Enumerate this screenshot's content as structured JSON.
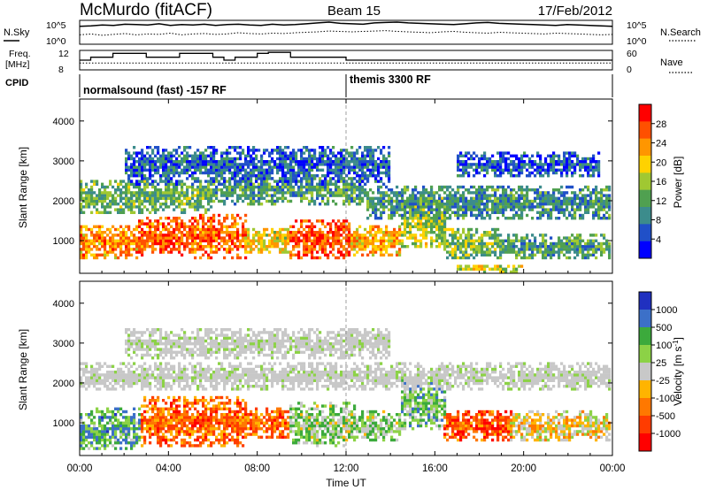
{
  "header": {
    "station": "McMurdo (fitACF)",
    "beam": "Beam 15",
    "date": "17/Feb/2012"
  },
  "top_panels": {
    "nsky_label": "N.Sky",
    "nsearch_label": "N.Search",
    "nsky_ticks": [
      "10^5",
      "10^0"
    ],
    "nsearch_ticks": [
      "10^5",
      "10^0"
    ],
    "freq_label": "Freq.",
    "freq_unit": "[MHz]",
    "freq_ticks": [
      "12",
      "8"
    ],
    "nave_label": "Nave",
    "nave_ticks": [
      "60",
      "0"
    ],
    "cpid_label": "CPID",
    "cpid_segments": [
      {
        "label": "normalsound (fast) -157 RF",
        "start_hour": 0
      },
      {
        "label": "themis 3300 RF",
        "start_hour": 12
      }
    ],
    "nsky_series": [
      4.0,
      4.1,
      4.3,
      4.2,
      4.5,
      4.4,
      4.3,
      4.6,
      4.2,
      4.4,
      4.3,
      4.5,
      4.2,
      4.4,
      4.5,
      4.3,
      4.2,
      4.5,
      4.3,
      4.4,
      4.6,
      4.8,
      5.0,
      4.7,
      4.6,
      4.5,
      4.8,
      4.9,
      5.0,
      4.8,
      4.7,
      4.6,
      4.5,
      4.4,
      4.6,
      4.8,
      4.9,
      4.7,
      4.6,
      4.5,
      4.4,
      4.3,
      4.2,
      4.4,
      4.3,
      4.2,
      4.1,
      4.0
    ],
    "nsearch_series": [
      2.0,
      2.2,
      1.9,
      2.1,
      2.3,
      2.0,
      2.2,
      2.1,
      2.4,
      2.0,
      2.2,
      2.3,
      2.1,
      2.2,
      2.5,
      2.3,
      2.2,
      2.4,
      2.3,
      2.5,
      2.6,
      2.7,
      2.9,
      2.8,
      2.7,
      2.8,
      2.9,
      3.0,
      2.8,
      2.7,
      2.6,
      2.5,
      2.7,
      2.8,
      2.6,
      2.5,
      2.4,
      2.6,
      2.5,
      2.4,
      2.3,
      2.2,
      2.4,
      2.3,
      2.2,
      2.1,
      2.0,
      2.1
    ],
    "freq_series": [
      10.0,
      10.6,
      10.6,
      11.4,
      11.4,
      11.4,
      10.6,
      10.6,
      10.6,
      11.4,
      11.4,
      11.4,
      10.6,
      10.0,
      10.6,
      10.6,
      11.4,
      11.6,
      11.6,
      10.6,
      10.6,
      10.6,
      10.6,
      10.6,
      10.0,
      10.0,
      10.0,
      10.0,
      10.0,
      10.0,
      10.0,
      10.0,
      10.0,
      10.0,
      10.0,
      10.0,
      10.0,
      10.0,
      10.0,
      10.0,
      10.0,
      10.0,
      10.0,
      10.0,
      10.0,
      10.0,
      10.0,
      10.0
    ],
    "nave_level": 21
  },
  "chart_data": [
    {
      "type": "heatmap",
      "title": "",
      "xlabel": "",
      "ylabel": "Slant Range [km]",
      "x_unit": "hours UT",
      "xlim": [
        0,
        24
      ],
      "ylim": [
        180,
        4550
      ],
      "y_ticks": [
        "1000",
        "2000",
        "3000",
        "4000"
      ],
      "colorbar_label": "Power [dB]",
      "colorbar_ticks": [
        "28",
        "24",
        "20",
        "16",
        "12",
        "8",
        "4"
      ],
      "colorbar_colors": [
        "#ff0000",
        "#ff5000",
        "#ff9600",
        "#ffd200",
        "#a0c832",
        "#50a050",
        "#3c8c8c",
        "#2050c8",
        "#0000ff"
      ],
      "bands": [
        {
          "t0": 0.0,
          "t1": 2.6,
          "r0": 500,
          "r1": 1400,
          "level": 0.72
        },
        {
          "t0": 2.6,
          "t1": 5.0,
          "r0": 600,
          "r1": 1600,
          "level": 0.82
        },
        {
          "t0": 5.0,
          "t1": 7.5,
          "r0": 550,
          "r1": 1700,
          "level": 0.8
        },
        {
          "t0": 7.5,
          "t1": 9.5,
          "r0": 650,
          "r1": 1300,
          "level": 0.6
        },
        {
          "t0": 9.5,
          "t1": 12.2,
          "r0": 500,
          "r1": 1500,
          "level": 0.85
        },
        {
          "t0": 12.2,
          "t1": 14.5,
          "r0": 600,
          "r1": 1400,
          "level": 0.7
        },
        {
          "t0": 14.5,
          "t1": 16.5,
          "r0": 800,
          "r1": 2100,
          "level": 0.5
        },
        {
          "t0": 16.5,
          "t1": 19.0,
          "r0": 500,
          "r1": 1300,
          "level": 0.45
        },
        {
          "t0": 19.0,
          "t1": 24.0,
          "r0": 500,
          "r1": 1200,
          "level": 0.35
        },
        {
          "t0": 0.0,
          "t1": 6.0,
          "r0": 1700,
          "r1": 2500,
          "level": 0.4
        },
        {
          "t0": 6.0,
          "t1": 13.0,
          "r0": 1900,
          "r1": 2600,
          "level": 0.35
        },
        {
          "t0": 13.0,
          "t1": 24.0,
          "r0": 1500,
          "r1": 2400,
          "level": 0.3
        },
        {
          "t0": 2.0,
          "t1": 14.0,
          "r0": 2400,
          "r1": 3400,
          "level": 0.2
        },
        {
          "t0": 17.0,
          "t1": 23.5,
          "r0": 2600,
          "r1": 3200,
          "level": 0.18
        },
        {
          "t0": 17.0,
          "t1": 20.0,
          "r0": 200,
          "r1": 420,
          "level": 0.55
        }
      ]
    },
    {
      "type": "heatmap",
      "title": "",
      "xlabel": "Time UT",
      "ylabel": "Slant Range [km]",
      "x_unit": "hours UT",
      "xlim": [
        0,
        24
      ],
      "ylim": [
        180,
        4550
      ],
      "x_ticks": [
        "00:00",
        "04:00",
        "08:00",
        "12:00",
        "16:00",
        "20:00",
        "00:00"
      ],
      "y_ticks": [
        "1000",
        "2000",
        "3000",
        "4000"
      ],
      "colorbar_label": "Velocity [m s^-1]",
      "colorbar_ticks": [
        "1000",
        "500",
        "100",
        "25",
        "-25",
        "-100",
        "-500",
        "-1000"
      ],
      "colorbar_colors": [
        "#2030c0",
        "#3c70c8",
        "#3caa3c",
        "#8cd246",
        "#c8c8c8",
        "#ffb400",
        "#ff7800",
        "#ff3c00",
        "#ff0000"
      ],
      "ground_scatter_color": "#c8c8c8",
      "bands": [
        {
          "t0": 0.0,
          "t1": 2.8,
          "r0": 300,
          "r1": 1400,
          "level": 0.72
        },
        {
          "t0": 2.8,
          "t1": 7.5,
          "r0": 400,
          "r1": 1700,
          "level": 0.25
        },
        {
          "t0": 7.5,
          "t1": 9.5,
          "r0": 600,
          "r1": 1400,
          "level": 0.25
        },
        {
          "t0": 9.5,
          "t1": 12.5,
          "r0": 400,
          "r1": 1500,
          "level": 0.6
        },
        {
          "t0": 12.5,
          "t1": 14.5,
          "r0": 500,
          "r1": 1300,
          "level": 0.6
        },
        {
          "t0": 14.5,
          "t1": 16.5,
          "r0": 800,
          "r1": 2100,
          "level": 0.65
        },
        {
          "t0": 16.5,
          "t1": 19.5,
          "r0": 500,
          "r1": 1300,
          "level": 0.2
        },
        {
          "t0": 19.5,
          "t1": 24.0,
          "r0": 500,
          "r1": 1300,
          "level": 0.45
        },
        {
          "t0": 0.0,
          "t1": 24.0,
          "r0": 1800,
          "r1": 2500,
          "level": 0.5
        },
        {
          "t0": 2.0,
          "t1": 14.0,
          "r0": 2600,
          "r1": 3400,
          "level": 0.5
        }
      ]
    }
  ]
}
